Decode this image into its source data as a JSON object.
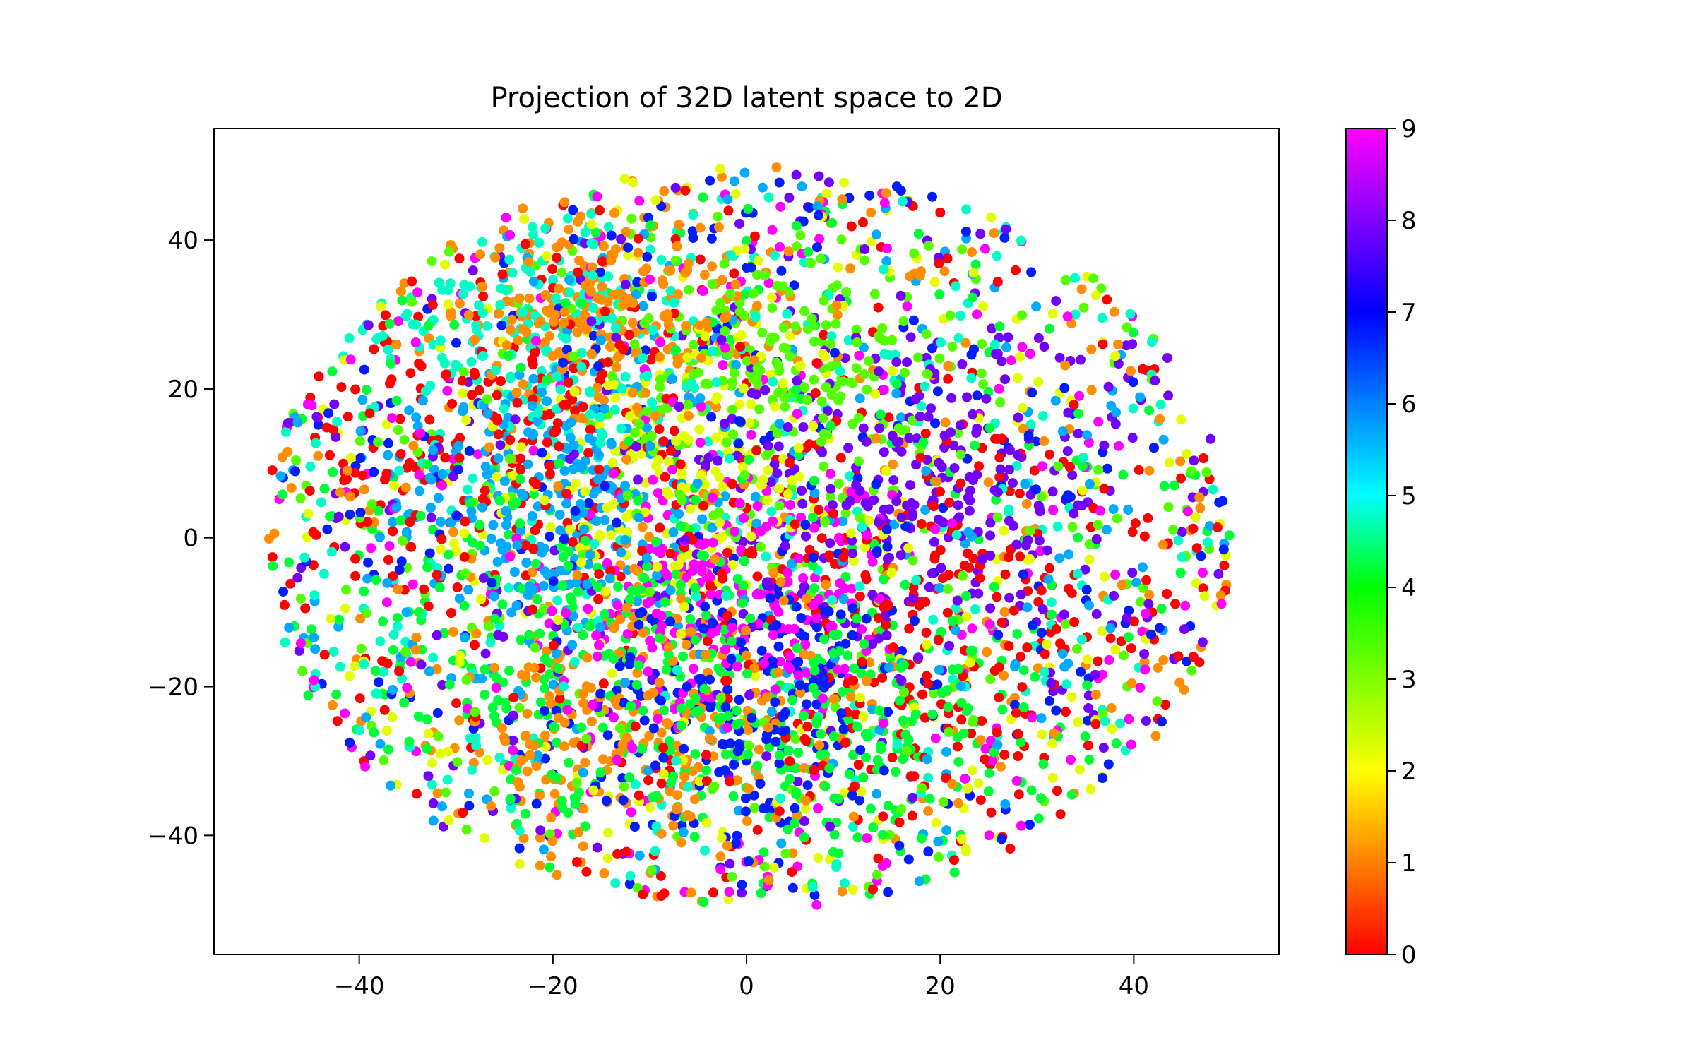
{
  "chart_data": {
    "type": "scatter",
    "title": "Projection of 32D latent space to 2D",
    "xlabel": "",
    "ylabel": "",
    "xlim": [
      -55,
      55
    ],
    "ylim": [
      -56,
      55
    ],
    "xticks": [
      -40,
      -20,
      0,
      20,
      40
    ],
    "yticks": [
      -40,
      -20,
      0,
      20,
      40
    ],
    "grid": false,
    "legend": "none",
    "colorbar": {
      "min": 0,
      "max": 9,
      "ticks": [
        0,
        1,
        2,
        3,
        4,
        5,
        6,
        7,
        8,
        9
      ],
      "colormap": "hsv",
      "stops": [
        "#ff0000",
        "#ff8000",
        "#ffff00",
        "#80ff00",
        "#00ff00",
        "#00ffff",
        "#0080ff",
        "#0000ff",
        "#8000ff",
        "#ff00ff"
      ]
    },
    "point_count_approx": 5000,
    "cluster_centers": [
      {
        "label": 0,
        "x": -27,
        "y": 12,
        "spread": 12
      },
      {
        "label": 0,
        "x": 20,
        "y": -8,
        "spread": 14
      },
      {
        "label": 1,
        "x": -12,
        "y": -25,
        "spread": 10
      },
      {
        "label": 1,
        "x": -16,
        "y": 30,
        "spread": 8
      },
      {
        "label": 2,
        "x": -5,
        "y": 8,
        "spread": 10
      },
      {
        "label": 3,
        "x": 3,
        "y": 22,
        "spread": 10
      },
      {
        "label": 4,
        "x": -15,
        "y": -15,
        "spread": 13
      },
      {
        "label": 4,
        "x": 12,
        "y": -25,
        "spread": 10
      },
      {
        "label": 5,
        "x": -20,
        "y": 28,
        "spread": 9
      },
      {
        "label": 6,
        "x": -20,
        "y": 5,
        "spread": 9
      },
      {
        "label": 7,
        "x": 0,
        "y": -22,
        "spread": 8
      },
      {
        "label": 8,
        "x": 20,
        "y": 8,
        "spread": 10
      },
      {
        "label": 9,
        "x": -2,
        "y": -7,
        "spread": 9
      }
    ]
  }
}
